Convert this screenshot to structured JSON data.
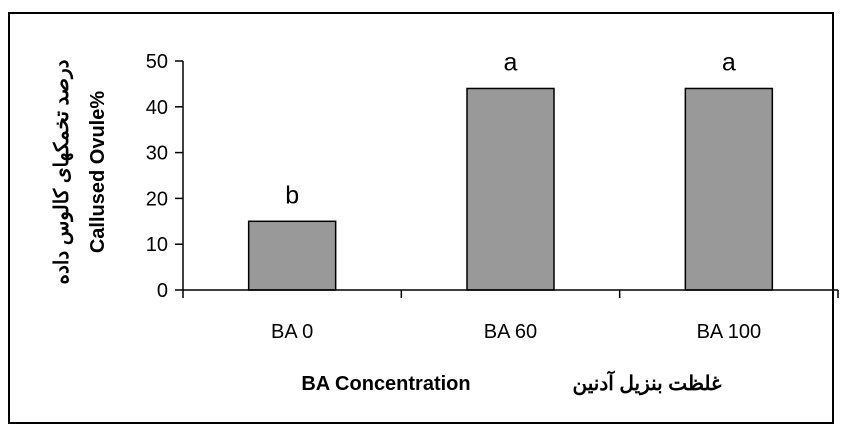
{
  "chart_data": {
    "type": "bar",
    "categories": [
      "BA 0",
      "BA 60",
      "BA 100"
    ],
    "values": [
      15,
      44,
      44
    ],
    "data_labels": [
      "b",
      "a",
      "a"
    ],
    "title": "",
    "xlabel_fa": "غلظت بنزیل آدنین",
    "xlabel_en": "BA Concentration",
    "ylabel_en": "Callused Ovule%",
    "ylabel_fa": "درصد تخمکهای کالوس داده",
    "ylim": [
      0,
      50
    ],
    "yticks": [
      0,
      10,
      20,
      30,
      40,
      50
    ],
    "grid": false,
    "bar_color": "#999999",
    "bar_edge_color": "#000000"
  }
}
